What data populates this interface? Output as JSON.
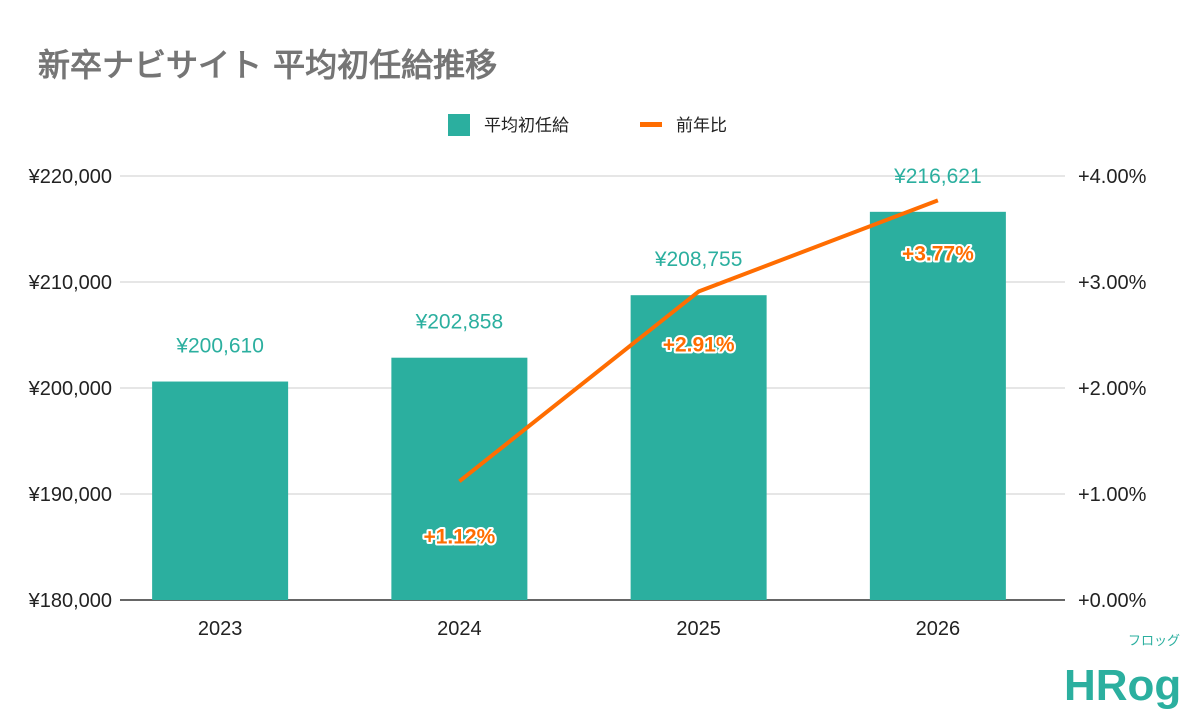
{
  "chart_data": {
    "type": "bar+line",
    "title": "新卒ナビサイト 平均初任給推移",
    "categories": [
      "2023",
      "2024",
      "2025",
      "2026"
    ],
    "series": [
      {
        "name": "平均初任給",
        "type": "bar",
        "axis": "left",
        "color": "#2BAF9F",
        "values": [
          200610,
          202858,
          208755,
          216621
        ],
        "labels": [
          "¥200,610",
          "¥202,858",
          "¥208,755",
          "¥216,621"
        ]
      },
      {
        "name": "前年比",
        "type": "line",
        "axis": "right",
        "color": "#FF6D01",
        "values": [
          null,
          1.12,
          2.91,
          3.77
        ],
        "labels": [
          "",
          "+1.12%",
          "+2.91%",
          "+3.77%"
        ]
      }
    ],
    "y_left": {
      "range": [
        180000,
        220000
      ],
      "ticks": [
        "¥180,000",
        "¥190,000",
        "¥200,000",
        "¥210,000",
        "¥220,000"
      ]
    },
    "y_right": {
      "range": [
        0,
        4
      ],
      "ticks": [
        "+0.00%",
        "+1.00%",
        "+2.00%",
        "+3.00%",
        "+4.00%"
      ]
    },
    "grid": true,
    "legend": "top-center"
  },
  "logo": {
    "text": "HRog",
    "kana": "フロッグ",
    "color": "#2BAF9F"
  }
}
